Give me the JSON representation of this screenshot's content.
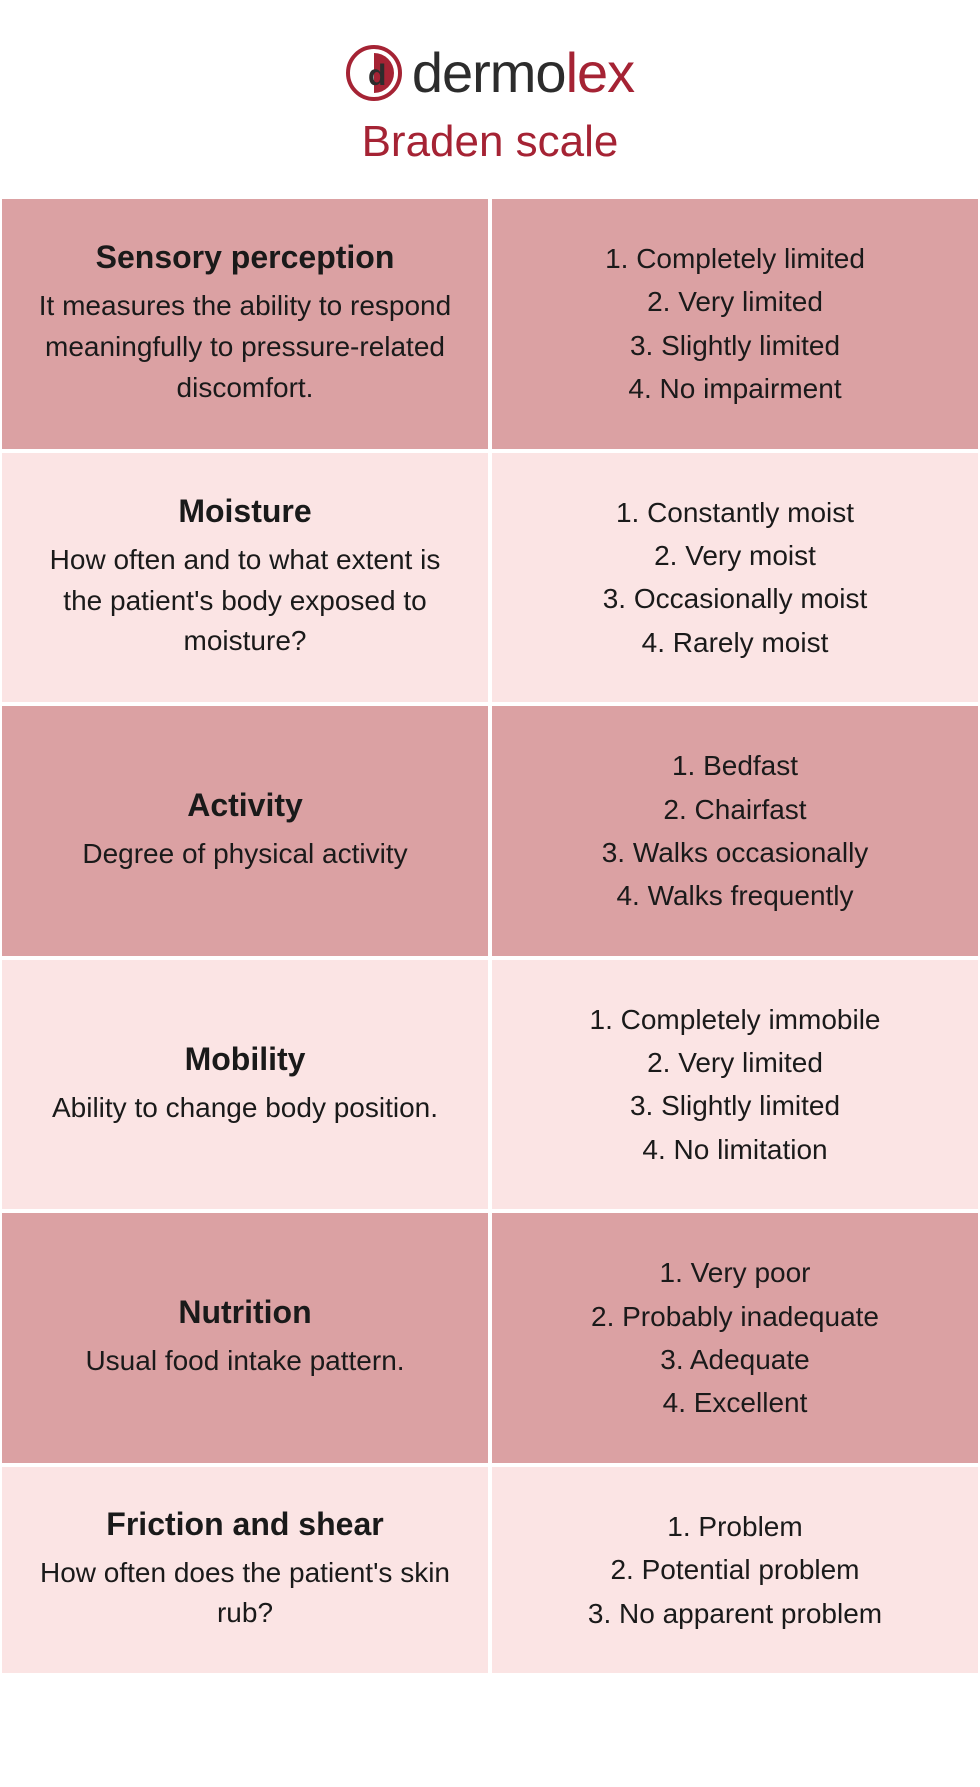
{
  "colors": {
    "dark_row_bg": "#dba1a3",
    "light_row_bg": "#fbe4e4",
    "logo_red": "#a52334",
    "logo_dark": "#2c2c2c",
    "subtitle_color": "#a52334",
    "text_color": "#1a1a1a",
    "background": "#ffffff"
  },
  "typography": {
    "logo_fontsize": 56,
    "subtitle_fontsize": 44,
    "title_fontsize": 32,
    "desc_fontsize": 28,
    "options_fontsize": 28
  },
  "logo": {
    "text_dark": "dermo",
    "text_red": "lex"
  },
  "subtitle": "Braden scale",
  "rows": [
    {
      "bg": "dark",
      "title": "Sensory perception",
      "description": "It measures the ability to respond meaningfully to pressure-related discomfort.",
      "options": [
        "1. Completely limited",
        "2. Very limited",
        "3. Slightly limited",
        "4. No impairment"
      ]
    },
    {
      "bg": "light",
      "title": "Moisture",
      "description": "How often and to what extent is the patient's body exposed to moisture?",
      "options": [
        "1. Constantly moist",
        "2. Very moist",
        "3. Occasionally moist",
        "4. Rarely moist"
      ]
    },
    {
      "bg": "dark",
      "title": "Activity",
      "description": "Degree of physical activity",
      "options": [
        "1. Bedfast",
        "2. Chairfast",
        "3. Walks occasionally",
        "4. Walks frequently"
      ]
    },
    {
      "bg": "light",
      "title": "Mobility",
      "description": "Ability to change body position.",
      "options": [
        "1. Completely immobile",
        "2. Very limited",
        "3. Slightly limited",
        "4. No limitation"
      ]
    },
    {
      "bg": "dark",
      "title": "Nutrition",
      "description": "Usual food intake pattern.",
      "options": [
        "1. Very poor",
        "2. Probably inadequate",
        "3. Adequate",
        "4. Excellent"
      ]
    },
    {
      "bg": "light",
      "title": "Friction and shear",
      "description": "How often does the patient's skin rub?",
      "options": [
        "1. Problem",
        "2. Potential problem",
        "3. No apparent problem"
      ]
    }
  ]
}
